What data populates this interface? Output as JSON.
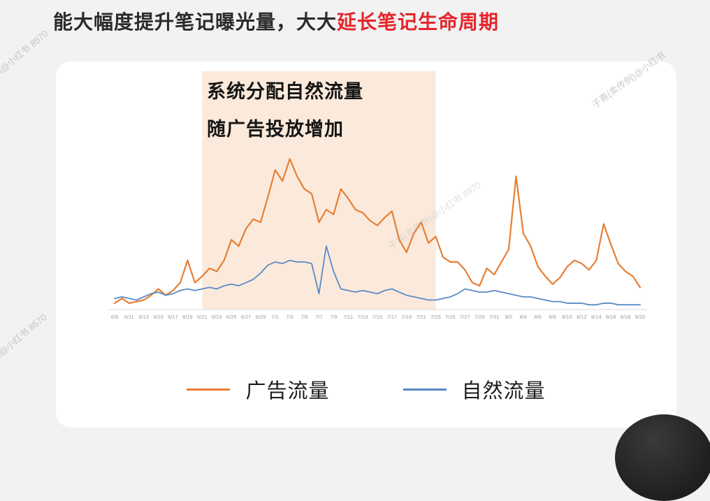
{
  "page": {
    "title_main": "能大幅度提升笔记曝光量，大大",
    "title_accent": "延长笔记生命周期"
  },
  "annotation": {
    "line1": "系统分配自然流量",
    "line2": "随广告投放增加"
  },
  "watermarks": {
    "top_left": "I@小红书 8570",
    "top_right": "子熹(卖传例)@小红书",
    "center": "子熹(卖传例)@小红书 8970",
    "bottom_left": "I@小红书 8570"
  },
  "colors": {
    "ad_line": "#E87E33",
    "natural_line": "#5B8AC5",
    "highlight_region": "#FBEADC",
    "title_accent": "#E4262B",
    "axis_line": "#D9D9D9",
    "tick_label": "#9B9B9B"
  },
  "chart_data": {
    "type": "line",
    "title": "",
    "xlabel": "",
    "ylabel": "",
    "ylim": [
      0,
      100
    ],
    "grid": false,
    "legend_position": "bottom",
    "x_start": "6/9",
    "x_end": "8/20",
    "x_frequency": "daily",
    "x_tick_labels": [
      "6/9",
      "6/11",
      "6/13",
      "6/15",
      "6/17",
      "6/19",
      "6/21",
      "6/23",
      "6/25",
      "6/27",
      "6/29",
      "7/1",
      "7/3",
      "7/5",
      "7/7",
      "7/9",
      "7/11",
      "7/13",
      "7/15",
      "7/17",
      "7/19",
      "7/21",
      "7/23",
      "7/25",
      "7/27",
      "7/29",
      "7/31",
      "8/2",
      "8/4",
      "8/6",
      "8/8",
      "8/10",
      "8/12",
      "8/14",
      "8/16",
      "8/18",
      "8/20"
    ],
    "highlight_region": {
      "start_index": 12,
      "end_index": 44,
      "start_label": "6/21",
      "end_label": "7/23",
      "note": "系统分配自然流量随广告投放增加"
    },
    "series": [
      {
        "name": "广告流量",
        "color": "#E87E33",
        "values": [
          4,
          7,
          4,
          5,
          6,
          9,
          13,
          9,
          12,
          17,
          31,
          17,
          21,
          26,
          24,
          31,
          44,
          40,
          51,
          57,
          55,
          71,
          88,
          81,
          95,
          84,
          76,
          73,
          55,
          63,
          60,
          76,
          70,
          63,
          61,
          56,
          53,
          58,
          62,
          44,
          36,
          48,
          55,
          42,
          46,
          33,
          30,
          30,
          25,
          17,
          15,
          26,
          22,
          30,
          38,
          84,
          48,
          40,
          27,
          21,
          16,
          20,
          27,
          31,
          29,
          25,
          31,
          54,
          41,
          29,
          24,
          21,
          14
        ]
      },
      {
        "name": "自然流量",
        "color": "#5B8AC5",
        "values": [
          7,
          8,
          7,
          6,
          8,
          10,
          11,
          9,
          10,
          12,
          13,
          12,
          13,
          14,
          13,
          15,
          16,
          15,
          17,
          19,
          23,
          28,
          30,
          29,
          31,
          30,
          30,
          29,
          10,
          40,
          24,
          13,
          12,
          11,
          12,
          11,
          10,
          12,
          13,
          11,
          9,
          8,
          7,
          6,
          6,
          7,
          8,
          10,
          13,
          12,
          11,
          11,
          12,
          11,
          10,
          9,
          8,
          8,
          7,
          6,
          5,
          5,
          4,
          4,
          4,
          3,
          3,
          4,
          4,
          3,
          3,
          3,
          3
        ]
      }
    ]
  }
}
